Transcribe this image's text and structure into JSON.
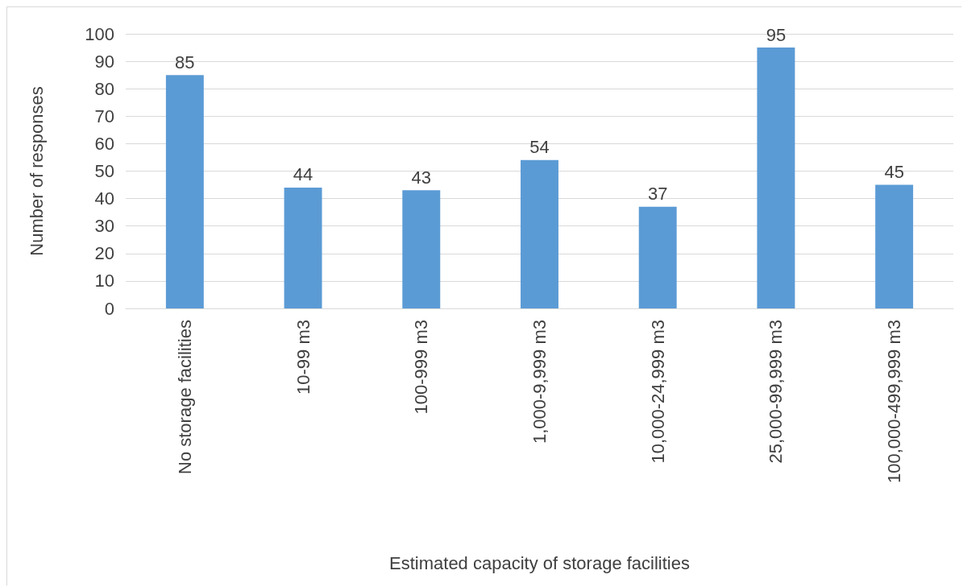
{
  "chart_data": {
    "type": "bar",
    "xlabel": "Estimated capacity of storage facilities",
    "ylabel": "Number of responses",
    "categories": [
      "No storage facilities",
      "10-99 m3",
      "100-999 m3",
      "1,000-9,999 m3",
      "10,000-24,999 m3",
      "25,000-99,999 m3",
      "100,000-499,999 m3"
    ],
    "values": [
      85,
      44,
      43,
      54,
      37,
      95,
      45
    ],
    "color": "#5b9bd5",
    "ylim": [
      0,
      100
    ],
    "yticks": [
      0,
      10,
      20,
      30,
      40,
      50,
      60,
      70,
      80,
      90,
      100
    ],
    "grid": "y",
    "data_labels": true
  }
}
